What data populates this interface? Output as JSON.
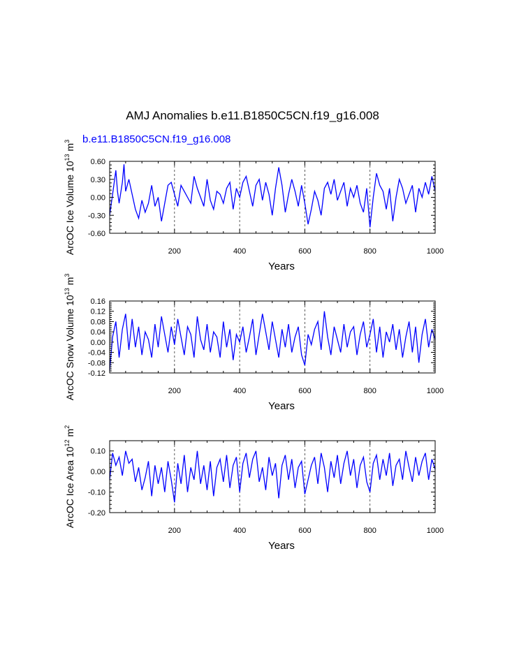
{
  "title": "AMJ Anomalies b.e11.B1850C5CN.f19_g16.008",
  "case_label": "b.e11.B1850C5CN.f19_g16.008",
  "colors": {
    "line": "#0000ff",
    "axes": "#000000",
    "case_label": "#0000ff"
  },
  "chart_data": [
    {
      "type": "line",
      "name": "ice-volume",
      "ylabel": "ArcOC Ice Volume 10^13 m^3",
      "xlabel": "Years",
      "xlim": [
        1,
        1000
      ],
      "ylim": [
        -0.6,
        0.6
      ],
      "xticks": [
        "200",
        "400",
        "600",
        "800",
        "1000"
      ],
      "yticks": [
        "-0.60",
        "-0.30",
        "0.00",
        "0.30",
        "0.60"
      ],
      "x": [
        1,
        10,
        20,
        25,
        30,
        40,
        45,
        50,
        60,
        70,
        80,
        90,
        100,
        110,
        120,
        130,
        140,
        150,
        160,
        170,
        180,
        190,
        200,
        210,
        220,
        230,
        240,
        250,
        260,
        270,
        280,
        290,
        300,
        310,
        320,
        330,
        340,
        350,
        360,
        370,
        380,
        390,
        400,
        410,
        420,
        430,
        440,
        450,
        460,
        470,
        480,
        490,
        500,
        510,
        520,
        530,
        540,
        550,
        560,
        570,
        580,
        590,
        600,
        610,
        620,
        630,
        640,
        650,
        660,
        670,
        680,
        690,
        700,
        710,
        720,
        730,
        740,
        750,
        760,
        770,
        780,
        790,
        800,
        810,
        820,
        830,
        840,
        850,
        860,
        870,
        880,
        890,
        900,
        910,
        920,
        930,
        940,
        950,
        960,
        970,
        980,
        990,
        1000
      ],
      "values": [
        -0.3,
        0.05,
        0.45,
        0.1,
        -0.1,
        0.25,
        0.55,
        0.1,
        0.3,
        0.05,
        -0.2,
        -0.35,
        -0.05,
        -0.25,
        -0.1,
        0.2,
        -0.15,
        0.0,
        -0.4,
        -0.1,
        0.2,
        0.25,
        0.05,
        -0.15,
        0.2,
        0.1,
        0.0,
        -0.1,
        0.35,
        0.15,
        0.0,
        -0.15,
        0.3,
        -0.05,
        -0.2,
        0.1,
        0.05,
        -0.1,
        0.15,
        0.25,
        -0.2,
        0.15,
        0.0,
        0.25,
        0.35,
        0.1,
        -0.15,
        0.2,
        0.3,
        -0.05,
        0.25,
        0.05,
        -0.3,
        0.15,
        0.5,
        0.2,
        -0.25,
        0.05,
        0.3,
        0.1,
        -0.15,
        0.2,
        -0.1,
        -0.45,
        -0.2,
        0.1,
        -0.05,
        -0.3,
        0.15,
        0.25,
        0.05,
        0.3,
        -0.05,
        0.1,
        0.25,
        -0.15,
        0.15,
        0.0,
        0.2,
        -0.1,
        -0.25,
        0.15,
        -0.5,
        0.0,
        0.4,
        0.2,
        0.1,
        -0.2,
        0.15,
        -0.4,
        0.0,
        0.3,
        0.15,
        -0.1,
        0.05,
        0.2,
        -0.25,
        0.15,
        0.0,
        0.25,
        0.05,
        0.35,
        0.1
      ]
    },
    {
      "type": "line",
      "name": "snow-volume",
      "ylabel": "ArcOC Snow Volume 10^13 m^3",
      "xlabel": "Years",
      "xlim": [
        1,
        1000
      ],
      "ylim": [
        -0.12,
        0.16
      ],
      "xticks": [
        "200",
        "400",
        "600",
        "800",
        "1000"
      ],
      "yticks": [
        "-0.12",
        "-0.08",
        "-0.04",
        "0.00",
        "0.04",
        "0.08",
        "0.12",
        "0.16"
      ],
      "x": [
        1,
        10,
        20,
        30,
        40,
        50,
        60,
        70,
        80,
        90,
        100,
        110,
        120,
        130,
        140,
        150,
        160,
        170,
        180,
        190,
        200,
        210,
        220,
        230,
        240,
        250,
        260,
        270,
        280,
        290,
        300,
        310,
        320,
        330,
        340,
        350,
        360,
        370,
        380,
        390,
        400,
        410,
        420,
        430,
        440,
        450,
        460,
        470,
        480,
        490,
        500,
        510,
        520,
        530,
        540,
        550,
        560,
        570,
        580,
        590,
        600,
        610,
        620,
        630,
        640,
        650,
        660,
        670,
        680,
        690,
        700,
        710,
        720,
        730,
        740,
        750,
        760,
        770,
        780,
        790,
        800,
        810,
        820,
        830,
        840,
        850,
        860,
        870,
        880,
        890,
        900,
        910,
        920,
        930,
        940,
        950,
        960,
        970,
        980,
        990,
        1000
      ],
      "values": [
        -0.11,
        0.02,
        0.08,
        -0.06,
        0.05,
        0.11,
        -0.03,
        0.09,
        -0.02,
        0.06,
        -0.05,
        0.04,
        0.01,
        -0.06,
        0.07,
        -0.02,
        0.1,
        0.03,
        -0.04,
        0.06,
        -0.01,
        0.09,
        0.02,
        -0.05,
        0.06,
        0.03,
        -0.06,
        0.1,
        0.01,
        -0.03,
        0.07,
        -0.04,
        0.04,
        0.02,
        -0.06,
        0.08,
        -0.02,
        0.05,
        -0.07,
        0.03,
        0.0,
        0.06,
        -0.04,
        0.02,
        0.09,
        -0.05,
        0.03,
        0.11,
        0.04,
        -0.03,
        0.08,
        0.01,
        -0.06,
        0.05,
        -0.02,
        0.07,
        -0.04,
        0.02,
        0.06,
        -0.05,
        -0.09,
        0.03,
        -0.01,
        0.05,
        0.08,
        -0.03,
        0.12,
        0.02,
        -0.05,
        0.06,
        0.01,
        -0.04,
        0.07,
        -0.02,
        0.04,
        0.06,
        -0.05,
        0.03,
        0.08,
        -0.02,
        0.03,
        0.09,
        -0.04,
        0.06,
        -0.06,
        0.04,
        0.0,
        0.07,
        -0.03,
        0.05,
        -0.06,
        0.02,
        0.08,
        -0.04,
        0.06,
        -0.08,
        0.03,
        0.09,
        -0.02,
        0.05,
        0.01
      ]
    },
    {
      "type": "line",
      "name": "ice-area",
      "ylabel": "ArcOC Ice Area 10^12 m^2",
      "xlabel": "Years",
      "xlim": [
        1,
        1000
      ],
      "ylim": [
        -0.2,
        0.15
      ],
      "xticks": [
        "200",
        "400",
        "600",
        "800",
        "1000"
      ],
      "yticks": [
        "-0.20",
        "-0.10",
        "0.00",
        "0.10"
      ],
      "x": [
        1,
        10,
        20,
        30,
        40,
        50,
        60,
        70,
        80,
        90,
        100,
        110,
        120,
        130,
        140,
        150,
        160,
        170,
        180,
        190,
        200,
        210,
        220,
        230,
        240,
        250,
        260,
        270,
        280,
        290,
        300,
        310,
        320,
        330,
        340,
        350,
        360,
        370,
        380,
        390,
        400,
        410,
        420,
        430,
        440,
        450,
        460,
        470,
        480,
        490,
        500,
        510,
        520,
        530,
        540,
        550,
        560,
        570,
        580,
        590,
        600,
        610,
        620,
        630,
        640,
        650,
        660,
        670,
        680,
        690,
        700,
        710,
        720,
        730,
        740,
        750,
        760,
        770,
        780,
        790,
        800,
        810,
        820,
        830,
        840,
        850,
        860,
        870,
        880,
        890,
        900,
        910,
        920,
        930,
        940,
        950,
        960,
        970,
        980,
        990,
        1000
      ],
      "values": [
        -0.04,
        0.09,
        0.03,
        0.07,
        -0.02,
        0.1,
        0.04,
        0.06,
        -0.05,
        0.02,
        -0.09,
        -0.03,
        0.05,
        -0.12,
        0.03,
        -0.06,
        0.02,
        -0.1,
        0.05,
        -0.04,
        -0.15,
        0.04,
        -0.06,
        0.08,
        -0.1,
        0.02,
        -0.04,
        0.1,
        -0.06,
        0.03,
        -0.09,
        0.05,
        -0.12,
        0.02,
        0.06,
        -0.05,
        0.08,
        -0.08,
        0.03,
        0.07,
        -0.1,
        0.04,
        0.09,
        -0.03,
        0.06,
        0.1,
        -0.05,
        0.02,
        -0.09,
        0.07,
        -0.02,
        0.04,
        -0.13,
        0.03,
        0.08,
        -0.04,
        0.06,
        -0.08,
        0.02,
        0.05,
        -0.11,
        -0.04,
        0.03,
        0.07,
        -0.06,
        0.09,
        0.02,
        -0.1,
        0.05,
        -0.03,
        0.08,
        -0.06,
        0.04,
        0.1,
        -0.02,
        0.06,
        -0.08,
        0.03,
        0.07,
        -0.05,
        -0.1,
        0.04,
        0.08,
        -0.04,
        0.06,
        -0.02,
        0.09,
        -0.07,
        0.03,
        0.06,
        -0.04,
        0.1,
        0.02,
        -0.05,
        0.07,
        -0.02,
        0.05,
        0.09,
        -0.04,
        0.06,
        0.01
      ]
    }
  ]
}
